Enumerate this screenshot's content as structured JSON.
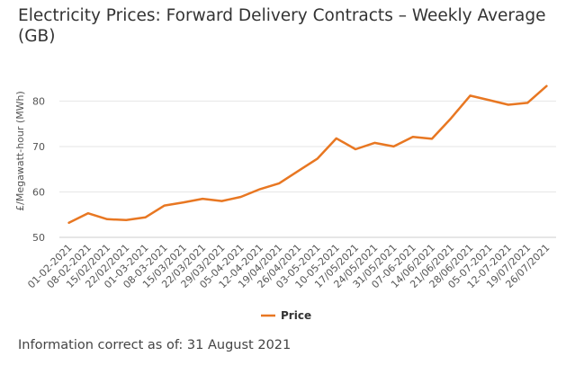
{
  "chart_data": {
    "type": "line",
    "title": "Electricity Prices: Forward Delivery Contracts – Weekly Average (GB)",
    "ylabel": "£/Megawatt-hour (MWh)",
    "xlabel": "",
    "categories": [
      "01-02-2021",
      "08-02-2021",
      "15/02/2021",
      "22/02/2021",
      "01-03-2021",
      "08-03-2021",
      "15/03/2021",
      "22/03/2021",
      "29/03/2021",
      "05-04-2021",
      "12-04-2021",
      "19/04/2021",
      "26/04/2021",
      "03-05-2021",
      "10-05-2021",
      "17/05/2021",
      "24/05/2021",
      "31/05/2021",
      "07-06-2021",
      "14/06/2021",
      "21/06/2021",
      "28/06/2021",
      "05-07-2021",
      "12-07-2021",
      "19/07/2021",
      "26/07/2021"
    ],
    "series": [
      {
        "name": "Price",
        "color": "#e87722",
        "values": [
          53.2,
          55.3,
          54.0,
          53.8,
          54.4,
          57.0,
          57.7,
          58.5,
          58.0,
          58.9,
          60.6,
          61.9,
          64.6,
          67.3,
          71.8,
          69.4,
          70.8,
          70.0,
          72.1,
          71.7,
          76.2,
          81.2,
          80.2,
          79.2,
          79.6,
          83.3
        ]
      }
    ],
    "yticks": [
      50,
      60,
      70,
      80
    ],
    "ylim": [
      50,
      88
    ],
    "grid": "horizontal",
    "legend": "bottom-center"
  },
  "footnote": "Information correct as of: 31 August 2021"
}
